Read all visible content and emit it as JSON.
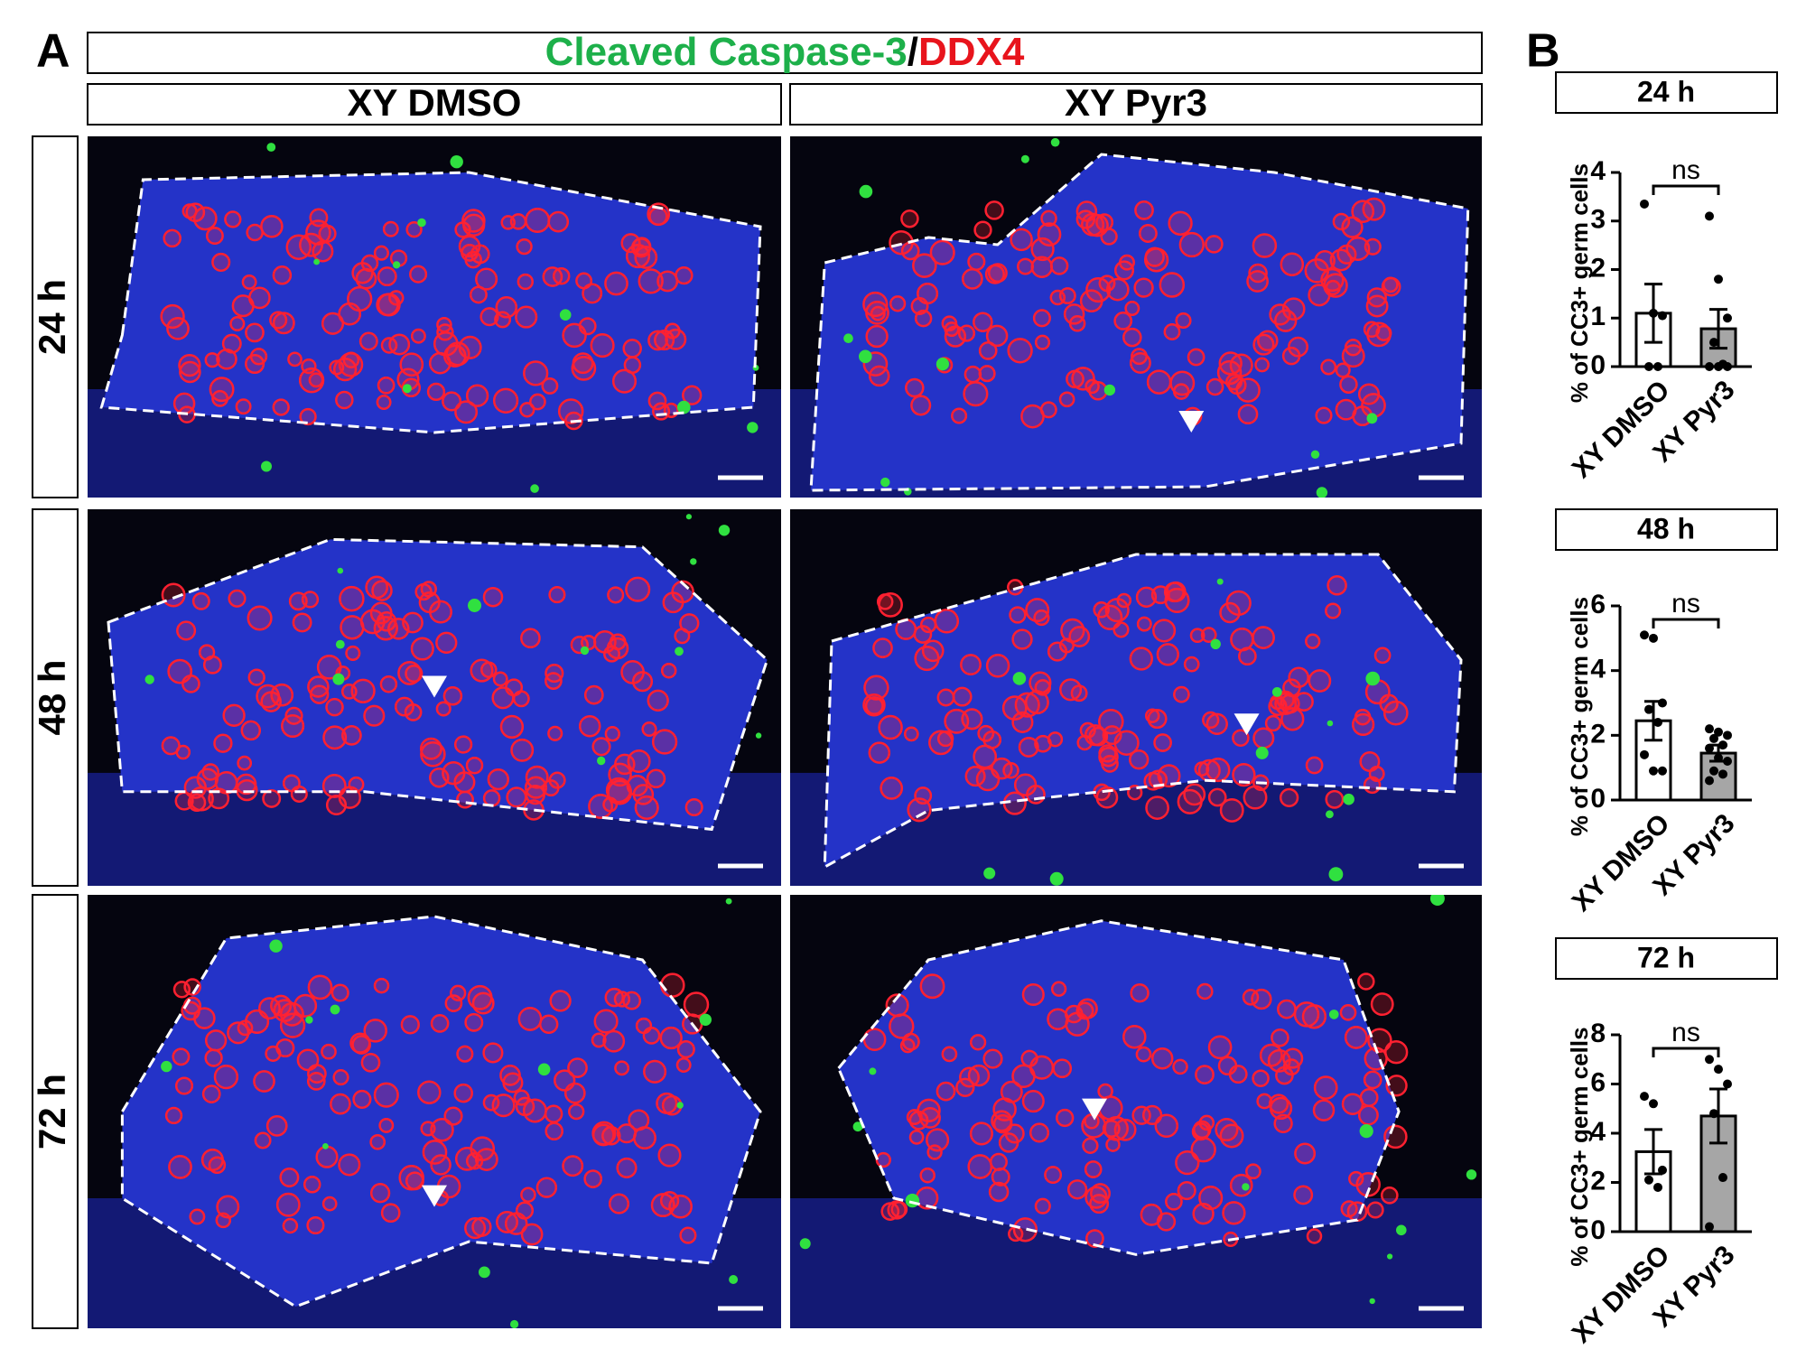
{
  "panel_a": {
    "label": "A",
    "title": {
      "part1": "Cleaved Caspase-3",
      "separator": "/",
      "part2": "DDX4"
    },
    "columns": [
      "XY DMSO",
      "XY Pyr3"
    ],
    "rows": [
      "24 h",
      "48 h",
      "72 h"
    ]
  },
  "panel_b": {
    "label": "B"
  },
  "chart_data": [
    {
      "type": "bar",
      "title": "24 h",
      "y_label": "% of CC3+ germ cells",
      "categories": [
        "XY DMSO",
        "XY Pyr3"
      ],
      "values": [
        1.1,
        0.78
      ],
      "errors": [
        0.6,
        0.4
      ],
      "colors": [
        "#ffffff",
        "#a6a6a6"
      ],
      "points": [
        [
          3.35,
          1.1,
          1.05,
          0,
          0
        ],
        [
          3.1,
          1.8,
          1.0,
          0.5,
          0.05,
          0,
          0,
          0
        ]
      ],
      "annotation": "ns",
      "ylim": [
        0,
        4
      ],
      "yticks": [
        0,
        1,
        2,
        3,
        4
      ]
    },
    {
      "type": "bar",
      "title": "48 h",
      "y_label": "% of CC3+ germ cells",
      "categories": [
        "XY DMSO",
        "XY Pyr3"
      ],
      "values": [
        2.45,
        1.45
      ],
      "errors": [
        0.6,
        0.25
      ],
      "colors": [
        "#ffffff",
        "#a6a6a6"
      ],
      "points": [
        [
          5.1,
          5.0,
          3.0,
          2.8,
          2.4,
          1.4,
          0.9,
          0.9
        ],
        [
          2.2,
          2.1,
          2.0,
          1.9,
          1.7,
          1.6,
          1.3,
          1.2,
          0.9,
          0.8,
          0.6
        ]
      ],
      "annotation": "ns",
      "ylim": [
        0,
        6
      ],
      "yticks": [
        0,
        2,
        4,
        6
      ]
    },
    {
      "type": "bar",
      "title": "72 h",
      "y_label": "% of CC3+ germ cells",
      "categories": [
        "XY DMSO",
        "XY Pyr3"
      ],
      "values": [
        3.25,
        4.7
      ],
      "errors": [
        0.9,
        1.1
      ],
      "colors": [
        "#ffffff",
        "#a6a6a6"
      ],
      "points": [
        [
          5.5,
          5.2,
          2.5,
          2.1,
          1.8
        ],
        [
          7.0,
          6.6,
          6.0,
          4.8,
          2.2,
          0.2
        ]
      ],
      "annotation": "ns",
      "ylim": [
        0,
        8
      ],
      "yticks": [
        0,
        2,
        4,
        6,
        8
      ]
    }
  ]
}
